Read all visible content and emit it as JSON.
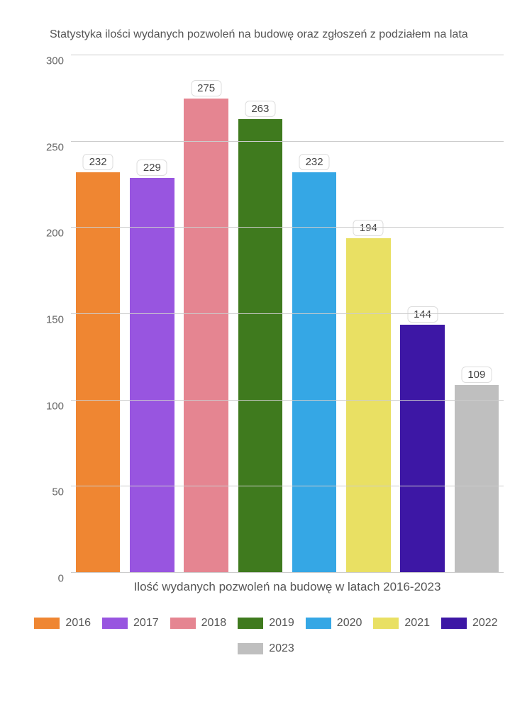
{
  "chart": {
    "type": "bar",
    "title": "Statystyka ilości wydanych pozwoleń na budowę oraz zgłoszeń z podziałem na lata",
    "x_label": "Ilość wydanych pozwoleń na budowę w latach 2016-2023",
    "ylim": [
      0,
      300
    ],
    "ytick_step": 50,
    "yticks": [
      0,
      50,
      100,
      150,
      200,
      250,
      300
    ],
    "background_color": "#ffffff",
    "grid_color": "#cccccc",
    "title_fontsize": 16,
    "label_fontsize": 17,
    "tick_fontsize": 15,
    "bar_width_ratio": 0.82,
    "series": [
      {
        "year": "2016",
        "value": 232,
        "color": "#ef8632"
      },
      {
        "year": "2017",
        "value": 229,
        "color": "#9855e0"
      },
      {
        "year": "2018",
        "value": 275,
        "color": "#e58591"
      },
      {
        "year": "2019",
        "value": 263,
        "color": "#3f7a1e"
      },
      {
        "year": "2020",
        "value": 232,
        "color": "#35a7e5"
      },
      {
        "year": "2021",
        "value": 194,
        "color": "#e9e063"
      },
      {
        "year": "2022",
        "value": 144,
        "color": "#3d17a5"
      },
      {
        "year": "2023",
        "value": 109,
        "color": "#bfbfbf"
      }
    ]
  }
}
